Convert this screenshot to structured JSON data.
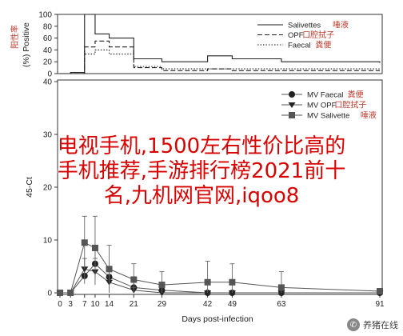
{
  "chart_data": [
    {
      "type": "line",
      "title": "",
      "ylabel": "(%) Positive",
      "ylabel_annotation": "阳性率",
      "ylim": [
        0,
        100
      ],
      "yticks": [
        0,
        20,
        40,
        60,
        80,
        100
      ],
      "xlim": [
        0,
        91
      ],
      "legend": "top-right",
      "series": [
        {
          "name": "Salivettes",
          "annotation": "唾液",
          "style": "solid",
          "x": [
            0,
            2,
            3,
            7,
            10,
            14,
            21,
            29,
            42,
            49,
            63,
            91
          ],
          "y": [
            0,
            0,
            2,
            100,
            67,
            60,
            25,
            20,
            30,
            25,
            20,
            18
          ]
        },
        {
          "name": "OPF",
          "annotation": "口腔拭子",
          "style": "dashed",
          "x": [
            0,
            2,
            3,
            7,
            10,
            14,
            21,
            29,
            42,
            49,
            63,
            91
          ],
          "y": [
            0,
            0,
            0,
            45,
            55,
            45,
            10,
            5,
            8,
            5,
            5,
            5
          ]
        },
        {
          "name": "Faecal",
          "annotation": "粪便",
          "style": "dotted",
          "x": [
            0,
            2,
            3,
            7,
            10,
            14,
            21,
            29,
            42,
            49,
            63,
            91
          ],
          "y": [
            0,
            0,
            0,
            33,
            40,
            33,
            12,
            8,
            8,
            8,
            8,
            8
          ]
        }
      ]
    },
    {
      "type": "line",
      "title": "",
      "ylabel": "45-Ct",
      "ylim": [
        0,
        40
      ],
      "yticks": [
        0,
        10,
        20,
        30,
        40
      ],
      "xlabel": "Days post-infection",
      "xticks": [
        0,
        3,
        7,
        10,
        14,
        21,
        29,
        42,
        49,
        63,
        91
      ],
      "legend": "top-right",
      "series": [
        {
          "name": "MV Faecal",
          "annotation": "粪便",
          "marker": "circle",
          "x": [
            0,
            3,
            7,
            10,
            14,
            21,
            29,
            42,
            49,
            63,
            91
          ],
          "y": [
            0,
            0,
            3.2,
            5.5,
            3.0,
            1.0,
            0.5,
            0,
            0,
            0,
            0
          ],
          "err": [
            0,
            0,
            1.5,
            2.5,
            2.0,
            1.0,
            0.5,
            0,
            0,
            0,
            0
          ]
        },
        {
          "name": "MV OPF",
          "annotation": "口腔拭子",
          "marker": "triangle-down",
          "x": [
            0,
            3,
            7,
            10,
            14,
            21,
            29,
            42,
            49,
            63,
            91
          ],
          "y": [
            0,
            0,
            4.5,
            4.0,
            2.0,
            0.5,
            0,
            0,
            0,
            0,
            0
          ],
          "err": [
            0,
            0,
            2.0,
            2.5,
            1.5,
            0.5,
            0,
            0,
            0,
            0,
            0
          ]
        },
        {
          "name": "MV Salivette",
          "annotation": "唾液",
          "marker": "square",
          "x": [
            0,
            3,
            7,
            10,
            14,
            21,
            29,
            42,
            49,
            63,
            91
          ],
          "y": [
            0,
            0,
            9.5,
            8.5,
            4.5,
            2.5,
            1.5,
            2.0,
            2.0,
            1.0,
            0.3
          ],
          "err": [
            0,
            0,
            5.0,
            6.0,
            4.5,
            3.0,
            2.5,
            4.0,
            3.5,
            3.0,
            0.5
          ]
        }
      ]
    }
  ],
  "overlay_text": [
    "电视手机,1500左右性价比高的",
    "手机推荐,手游排行榜2021前十",
    "名,九机网官网,iqoo8"
  ],
  "watermark": {
    "icon": "wechat-icon",
    "text": "养猪在线"
  }
}
